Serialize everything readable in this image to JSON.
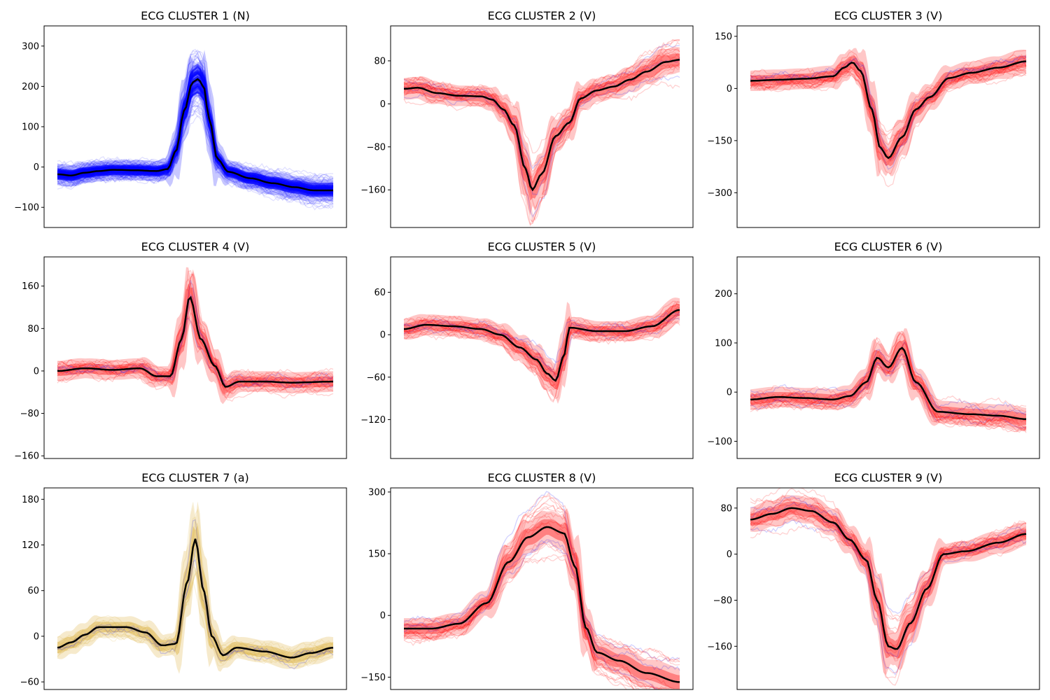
{
  "figure": {
    "background": "#ffffff"
  },
  "chart_data": [
    {
      "type": "line",
      "title": "ECG CLUSTER 1 (N)",
      "ylim": [
        -150,
        350
      ],
      "yticks": [
        300,
        200,
        100,
        0,
        -100
      ],
      "tick_labels": [
        "300",
        "200",
        "100",
        "0",
        "−100"
      ],
      "grid": false,
      "band_color": "#0000ff",
      "fill_color": "#0000ff",
      "shape": "normal",
      "mean": [
        {
          "x": 0,
          "y": -18
        },
        {
          "x": 0.05,
          "y": -21
        },
        {
          "x": 0.1,
          "y": -14
        },
        {
          "x": 0.15,
          "y": -10
        },
        {
          "x": 0.2,
          "y": -7
        },
        {
          "x": 0.28,
          "y": -8
        },
        {
          "x": 0.36,
          "y": -10
        },
        {
          "x": 0.4,
          "y": -5
        },
        {
          "x": 0.43,
          "y": 40
        },
        {
          "x": 0.46,
          "y": 140
        },
        {
          "x": 0.49,
          "y": 210
        },
        {
          "x": 0.51,
          "y": 218
        },
        {
          "x": 0.53,
          "y": 200
        },
        {
          "x": 0.55,
          "y": 120
        },
        {
          "x": 0.58,
          "y": 20
        },
        {
          "x": 0.62,
          "y": -12
        },
        {
          "x": 0.7,
          "y": -28
        },
        {
          "x": 0.78,
          "y": -40
        },
        {
          "x": 0.86,
          "y": -50
        },
        {
          "x": 0.93,
          "y": -58
        },
        {
          "x": 1,
          "y": -58
        }
      ]
    },
    {
      "type": "line",
      "title": "ECG CLUSTER 2 (V)",
      "ylim": [
        -230,
        145
      ],
      "yticks": [
        80,
        0,
        -80,
        -160
      ],
      "tick_labels": [
        "80",
        "0",
        "−80",
        "−160"
      ],
      "grid": false,
      "band_color": "#ff0000",
      "fill_color": "#ff0000",
      "shape": "v",
      "mean": [
        {
          "x": 0,
          "y": 28
        },
        {
          "x": 0.05,
          "y": 30
        },
        {
          "x": 0.12,
          "y": 20
        },
        {
          "x": 0.2,
          "y": 15
        },
        {
          "x": 0.28,
          "y": 14
        },
        {
          "x": 0.32,
          "y": 8
        },
        {
          "x": 0.36,
          "y": -10
        },
        {
          "x": 0.4,
          "y": -40
        },
        {
          "x": 0.44,
          "y": -120
        },
        {
          "x": 0.465,
          "y": -160
        },
        {
          "x": 0.5,
          "y": -130
        },
        {
          "x": 0.55,
          "y": -60
        },
        {
          "x": 0.6,
          "y": -35
        },
        {
          "x": 0.64,
          "y": 10
        },
        {
          "x": 0.7,
          "y": 25
        },
        {
          "x": 0.76,
          "y": 32
        },
        {
          "x": 0.82,
          "y": 45
        },
        {
          "x": 0.88,
          "y": 60
        },
        {
          "x": 0.95,
          "y": 78
        },
        {
          "x": 1,
          "y": 82
        }
      ]
    },
    {
      "type": "line",
      "title": "ECG CLUSTER 3 (V)",
      "ylim": [
        -400,
        180
      ],
      "yticks": [
        150,
        0,
        -150,
        -300
      ],
      "tick_labels": [
        "150",
        "0",
        "−150",
        "−300"
      ],
      "grid": false,
      "band_color": "#ff0000",
      "fill_color": "#ff0000",
      "shape": "v",
      "mean": [
        {
          "x": 0,
          "y": 22
        },
        {
          "x": 0.1,
          "y": 25
        },
        {
          "x": 0.2,
          "y": 28
        },
        {
          "x": 0.3,
          "y": 35
        },
        {
          "x": 0.34,
          "y": 60
        },
        {
          "x": 0.37,
          "y": 75
        },
        {
          "x": 0.4,
          "y": 50
        },
        {
          "x": 0.44,
          "y": -60
        },
        {
          "x": 0.47,
          "y": -170
        },
        {
          "x": 0.5,
          "y": -200
        },
        {
          "x": 0.55,
          "y": -140
        },
        {
          "x": 0.6,
          "y": -60
        },
        {
          "x": 0.65,
          "y": -25
        },
        {
          "x": 0.72,
          "y": 30
        },
        {
          "x": 0.8,
          "y": 45
        },
        {
          "x": 0.9,
          "y": 60
        },
        {
          "x": 1,
          "y": 78
        }
      ]
    },
    {
      "type": "line",
      "title": "ECG CLUSTER 4 (V)",
      "ylim": [
        -165,
        215
      ],
      "yticks": [
        160,
        80,
        0,
        -80,
        -160
      ],
      "tick_labels": [
        "160",
        "80",
        "0",
        "−80",
        "−160"
      ],
      "grid": false,
      "band_color": "#ff0000",
      "fill_color": "#ff0000",
      "shape": "v",
      "mean": [
        {
          "x": 0,
          "y": 0
        },
        {
          "x": 0.1,
          "y": 5
        },
        {
          "x": 0.2,
          "y": 2
        },
        {
          "x": 0.3,
          "y": 5
        },
        {
          "x": 0.36,
          "y": -10
        },
        {
          "x": 0.41,
          "y": -10
        },
        {
          "x": 0.45,
          "y": 60
        },
        {
          "x": 0.48,
          "y": 140
        },
        {
          "x": 0.52,
          "y": 60
        },
        {
          "x": 0.57,
          "y": 10
        },
        {
          "x": 0.61,
          "y": -30
        },
        {
          "x": 0.66,
          "y": -20
        },
        {
          "x": 0.75,
          "y": -20
        },
        {
          "x": 0.85,
          "y": -22
        },
        {
          "x": 1,
          "y": -20
        }
      ]
    },
    {
      "type": "line",
      "title": "ECG CLUSTER 5 (V)",
      "ylim": [
        -175,
        110
      ],
      "yticks": [
        60,
        0,
        -60,
        -120
      ],
      "tick_labels": [
        "60",
        "0",
        "−60",
        "−120"
      ],
      "grid": false,
      "band_color": "#ff0000",
      "fill_color": "#ff0000",
      "shape": "v",
      "mean": [
        {
          "x": 0,
          "y": 8
        },
        {
          "x": 0.08,
          "y": 14
        },
        {
          "x": 0.18,
          "y": 12
        },
        {
          "x": 0.28,
          "y": 8
        },
        {
          "x": 0.35,
          "y": 0
        },
        {
          "x": 0.42,
          "y": -18
        },
        {
          "x": 0.48,
          "y": -35
        },
        {
          "x": 0.52,
          "y": -55
        },
        {
          "x": 0.55,
          "y": -65
        },
        {
          "x": 0.58,
          "y": -30
        },
        {
          "x": 0.6,
          "y": 10
        },
        {
          "x": 0.7,
          "y": 5
        },
        {
          "x": 0.8,
          "y": 5
        },
        {
          "x": 0.9,
          "y": 12
        },
        {
          "x": 1,
          "y": 35
        }
      ]
    },
    {
      "type": "line",
      "title": "ECG CLUSTER 6 (V)",
      "ylim": [
        -135,
        275
      ],
      "yticks": [
        200,
        100,
        0,
        -100
      ],
      "tick_labels": [
        "200",
        "100",
        "0",
        "−100"
      ],
      "grid": false,
      "band_color": "#ff0000",
      "fill_color": "#ff0000",
      "shape": "v",
      "mean": [
        {
          "x": 0,
          "y": -15
        },
        {
          "x": 0.1,
          "y": -10
        },
        {
          "x": 0.2,
          "y": -12
        },
        {
          "x": 0.3,
          "y": -15
        },
        {
          "x": 0.36,
          "y": -8
        },
        {
          "x": 0.42,
          "y": 20
        },
        {
          "x": 0.46,
          "y": 70
        },
        {
          "x": 0.5,
          "y": 50
        },
        {
          "x": 0.55,
          "y": 90
        },
        {
          "x": 0.6,
          "y": 20
        },
        {
          "x": 0.68,
          "y": -40
        },
        {
          "x": 0.8,
          "y": -45
        },
        {
          "x": 0.9,
          "y": -48
        },
        {
          "x": 1,
          "y": -55
        }
      ]
    },
    {
      "type": "line",
      "title": "ECG CLUSTER 7 (a)",
      "ylim": [
        -70,
        195
      ],
      "yticks": [
        180,
        120,
        60,
        0,
        -60
      ],
      "tick_labels": [
        "180",
        "120",
        "60",
        "0",
        "−60"
      ],
      "grid": false,
      "band_color": "#e0b84a",
      "fill_color": "#d4a017",
      "shape": "a",
      "mean": [
        {
          "x": 0,
          "y": -15
        },
        {
          "x": 0.05,
          "y": -8
        },
        {
          "x": 0.1,
          "y": 2
        },
        {
          "x": 0.15,
          "y": 12
        },
        {
          "x": 0.25,
          "y": 12
        },
        {
          "x": 0.32,
          "y": 5
        },
        {
          "x": 0.38,
          "y": -12
        },
        {
          "x": 0.43,
          "y": -10
        },
        {
          "x": 0.47,
          "y": 70
        },
        {
          "x": 0.5,
          "y": 128
        },
        {
          "x": 0.53,
          "y": 60
        },
        {
          "x": 0.56,
          "y": 0
        },
        {
          "x": 0.6,
          "y": -25
        },
        {
          "x": 0.65,
          "y": -15
        },
        {
          "x": 0.75,
          "y": -20
        },
        {
          "x": 0.85,
          "y": -28
        },
        {
          "x": 0.92,
          "y": -22
        },
        {
          "x": 1,
          "y": -15
        }
      ]
    },
    {
      "type": "line",
      "title": "ECG CLUSTER 8 (V)",
      "ylim": [
        -180,
        310
      ],
      "yticks": [
        300,
        150,
        0,
        -150
      ],
      "tick_labels": [
        "300",
        "150",
        "0",
        "−150"
      ],
      "grid": false,
      "band_color": "#ff0000",
      "fill_color": "#ff0000",
      "shape": "v",
      "mean": [
        {
          "x": 0,
          "y": -32
        },
        {
          "x": 0.1,
          "y": -32
        },
        {
          "x": 0.2,
          "y": -20
        },
        {
          "x": 0.3,
          "y": 30
        },
        {
          "x": 0.38,
          "y": 130
        },
        {
          "x": 0.45,
          "y": 190
        },
        {
          "x": 0.52,
          "y": 215
        },
        {
          "x": 0.58,
          "y": 200
        },
        {
          "x": 0.62,
          "y": 120
        },
        {
          "x": 0.66,
          "y": -30
        },
        {
          "x": 0.7,
          "y": -90
        },
        {
          "x": 0.78,
          "y": -110
        },
        {
          "x": 0.88,
          "y": -140
        },
        {
          "x": 1,
          "y": -162
        }
      ]
    },
    {
      "type": "line",
      "title": "ECG CLUSTER 9 (V)",
      "ylim": [
        -235,
        115
      ],
      "yticks": [
        80,
        0,
        -80,
        -160
      ],
      "tick_labels": [
        "80",
        "0",
        "−80",
        "−160"
      ],
      "grid": false,
      "band_color": "#ff0000",
      "fill_color": "#ff0000",
      "shape": "v",
      "mean": [
        {
          "x": 0,
          "y": 60
        },
        {
          "x": 0.08,
          "y": 70
        },
        {
          "x": 0.15,
          "y": 80
        },
        {
          "x": 0.22,
          "y": 75
        },
        {
          "x": 0.3,
          "y": 55
        },
        {
          "x": 0.36,
          "y": 25
        },
        {
          "x": 0.42,
          "y": -10
        },
        {
          "x": 0.46,
          "y": -80
        },
        {
          "x": 0.5,
          "y": -160
        },
        {
          "x": 0.53,
          "y": -165
        },
        {
          "x": 0.58,
          "y": -120
        },
        {
          "x": 0.64,
          "y": -60
        },
        {
          "x": 0.7,
          "y": 0
        },
        {
          "x": 0.78,
          "y": 5
        },
        {
          "x": 0.9,
          "y": 20
        },
        {
          "x": 1,
          "y": 35
        }
      ]
    }
  ]
}
